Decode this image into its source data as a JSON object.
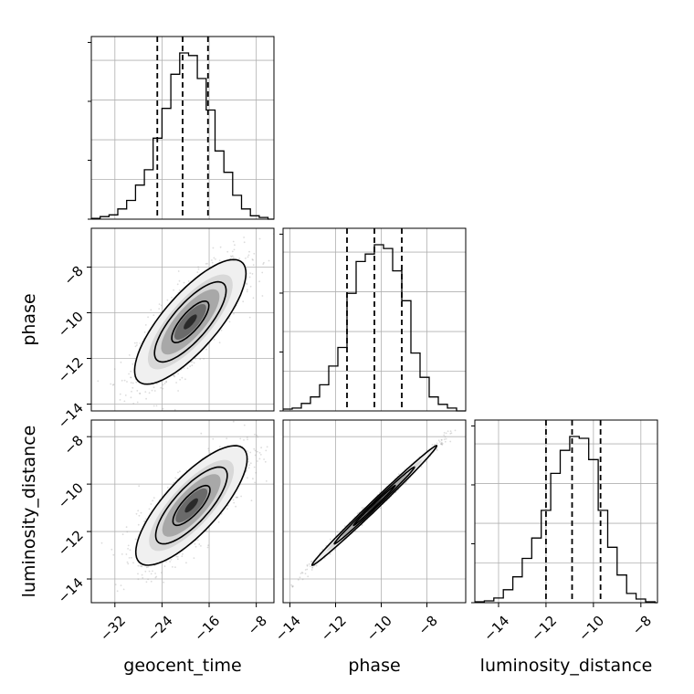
{
  "chart_data": {
    "type": "corner",
    "parameters": [
      "geocent_time",
      "phase",
      "luminosity_distance"
    ],
    "ranges": {
      "geocent_time": [
        -36,
        -5
      ],
      "phase": [
        -14.3,
        -6.3
      ],
      "luminosity_distance": [
        -15,
        -7.3
      ]
    },
    "ticks": {
      "geocent_time": [
        -32,
        -24,
        -16,
        -8
      ],
      "phase": [
        -14,
        -12,
        -10,
        -8
      ],
      "luminosity_distance": [
        -14,
        -12,
        -10,
        -8
      ]
    },
    "tick_labels": {
      "geocent_time": [
        "−32",
        "−24",
        "−16",
        "−8"
      ],
      "phase": [
        "−14",
        "−12",
        "−10",
        "−8"
      ],
      "luminosity_distance": [
        "−14",
        "−12",
        "−10",
        "−8"
      ]
    },
    "marginals": [
      {
        "parameter": "geocent_time",
        "bin_edges": [
          -36,
          -34.5,
          -33,
          -31.5,
          -30,
          -28.5,
          -27,
          -25.5,
          -24,
          -22.5,
          -21,
          -19.5,
          -18,
          -16.5,
          -15,
          -13.5,
          -12,
          -10.5,
          -9,
          -7.5,
          -6,
          -5
        ],
        "counts": [
          1,
          3,
          5,
          12,
          22,
          40,
          58,
          95,
          130,
          170,
          195,
          192,
          165,
          128,
          80,
          55,
          28,
          12,
          4,
          2,
          0
        ],
        "quantiles": [
          -24.8,
          -20.5,
          -16.2
        ]
      },
      {
        "parameter": "phase",
        "bin_edges": [
          -14.3,
          -13.9,
          -13.5,
          -13.1,
          -12.7,
          -12.3,
          -11.9,
          -11.5,
          -11.1,
          -10.7,
          -10.3,
          -9.9,
          -9.5,
          -9.1,
          -8.7,
          -8.3,
          -7.9,
          -7.5,
          -7.1,
          -6.7,
          -6.3
        ],
        "counts": [
          2,
          3,
          8,
          15,
          28,
          48,
          68,
          126,
          160,
          168,
          178,
          174,
          150,
          118,
          62,
          36,
          15,
          7,
          3,
          0
        ],
        "quantiles": [
          -11.5,
          -10.3,
          -9.1
        ]
      },
      {
        "parameter": "luminosity_distance",
        "bin_edges": [
          -15.0,
          -14.6,
          -14.2,
          -13.8,
          -13.4,
          -13.0,
          -12.6,
          -12.2,
          -11.8,
          -11.4,
          -11.0,
          -10.6,
          -10.2,
          -9.8,
          -9.4,
          -9.0,
          -8.6,
          -8.2,
          -7.8,
          -7.4,
          -7.3
        ],
        "counts": [
          1,
          2,
          5,
          14,
          28,
          48,
          70,
          100,
          140,
          165,
          180,
          178,
          155,
          100,
          60,
          30,
          10,
          4,
          1,
          0
        ],
        "quantiles": [
          -12.0,
          -10.9,
          -9.7
        ]
      }
    ],
    "panels_2d": [
      {
        "x": "geocent_time",
        "y": "phase",
        "center": [
          -19.2,
          -10.4
        ],
        "sigma": [
          4.5,
          1.3
        ],
        "rho": 0.78
      },
      {
        "x": "geocent_time",
        "y": "luminosity_distance",
        "center": [
          -19.0,
          -10.9
        ],
        "sigma": [
          4.5,
          1.2
        ],
        "rho": 0.78
      },
      {
        "x": "phase",
        "y": "luminosity_distance",
        "center": [
          -10.3,
          -10.9
        ],
        "sigma": [
          1.3,
          1.2
        ],
        "rho": 0.995
      }
    ],
    "grid": true,
    "colors": {
      "lines": "#000000",
      "points": "#9a9a9a",
      "grid": "#b0b0b0"
    }
  }
}
